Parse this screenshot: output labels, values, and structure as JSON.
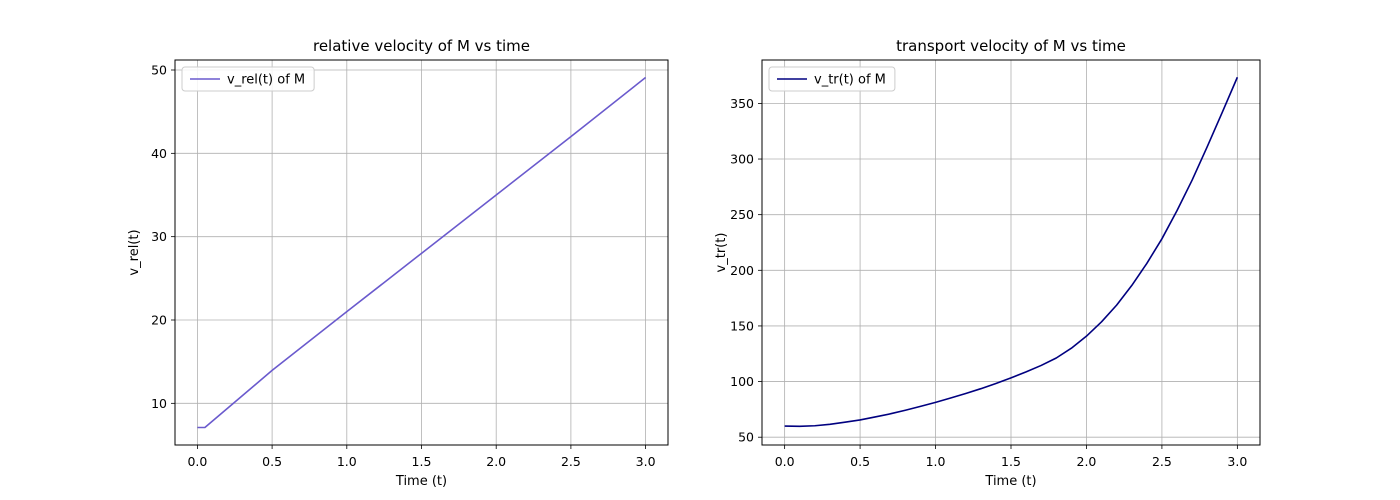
{
  "chart_data": [
    {
      "type": "line",
      "title": "relative velocity of M vs time",
      "xlabel": "Time (t)",
      "ylabel": "v_rel(t)",
      "xlim": [
        -0.15,
        3.15
      ],
      "ylim": [
        5,
        51.2
      ],
      "xticks": [
        0.0,
        0.5,
        1.0,
        1.5,
        2.0,
        2.5,
        3.0
      ],
      "xtick_labels": [
        "0.0",
        "0.5",
        "1.0",
        "1.5",
        "2.0",
        "2.5",
        "3.0"
      ],
      "yticks": [
        10,
        20,
        30,
        40,
        50
      ],
      "ytick_labels": [
        "10",
        "20",
        "30",
        "40",
        "50"
      ],
      "grid": true,
      "legend_position": "top-left",
      "series": [
        {
          "name": "v_rel(t) of M",
          "color": "#6a5acd",
          "x": [
            0.0,
            0.05,
            0.5,
            1.0,
            1.5,
            2.0,
            2.5,
            3.0
          ],
          "y": [
            7.1,
            7.1,
            13.95,
            21.0,
            28.0,
            35.0,
            42.0,
            49.1
          ]
        }
      ]
    },
    {
      "type": "line",
      "title": "transport velocity of M vs time",
      "xlabel": "Time (t)",
      "ylabel": "v_tr(t)",
      "xlim": [
        -0.15,
        3.15
      ],
      "ylim": [
        43,
        389
      ],
      "xticks": [
        0.0,
        0.5,
        1.0,
        1.5,
        2.0,
        2.5,
        3.0
      ],
      "xtick_labels": [
        "0.0",
        "0.5",
        "1.0",
        "1.5",
        "2.0",
        "2.5",
        "3.0"
      ],
      "yticks": [
        50,
        100,
        150,
        200,
        250,
        300,
        350
      ],
      "ytick_labels": [
        "50",
        "100",
        "150",
        "200",
        "250",
        "300",
        "350"
      ],
      "grid": true,
      "legend_position": "top-left",
      "series": [
        {
          "name": "v_tr(t) of M",
          "color": "#000080",
          "x": [
            0.0,
            0.1,
            0.2,
            0.3,
            0.4,
            0.5,
            0.6,
            0.7,
            0.8,
            0.9,
            1.0,
            1.1,
            1.2,
            1.3,
            1.4,
            1.5,
            1.6,
            1.7,
            1.8,
            1.9,
            2.0,
            2.1,
            2.2,
            2.3,
            2.4,
            2.5,
            2.6,
            2.7,
            2.8,
            2.9,
            3.0
          ],
          "y": [
            60,
            59.8,
            60.3,
            61.6,
            63.5,
            65.5,
            68.2,
            71.0,
            74.2,
            77.7,
            81.3,
            85.2,
            89.3,
            93.6,
            98.3,
            103.3,
            108.7,
            114.5,
            121.2,
            130.0,
            140.8,
            153.7,
            168.7,
            186.3,
            206.2,
            228.3,
            253.6,
            281.0,
            311.0,
            342.0,
            373.5
          ]
        }
      ]
    }
  ]
}
